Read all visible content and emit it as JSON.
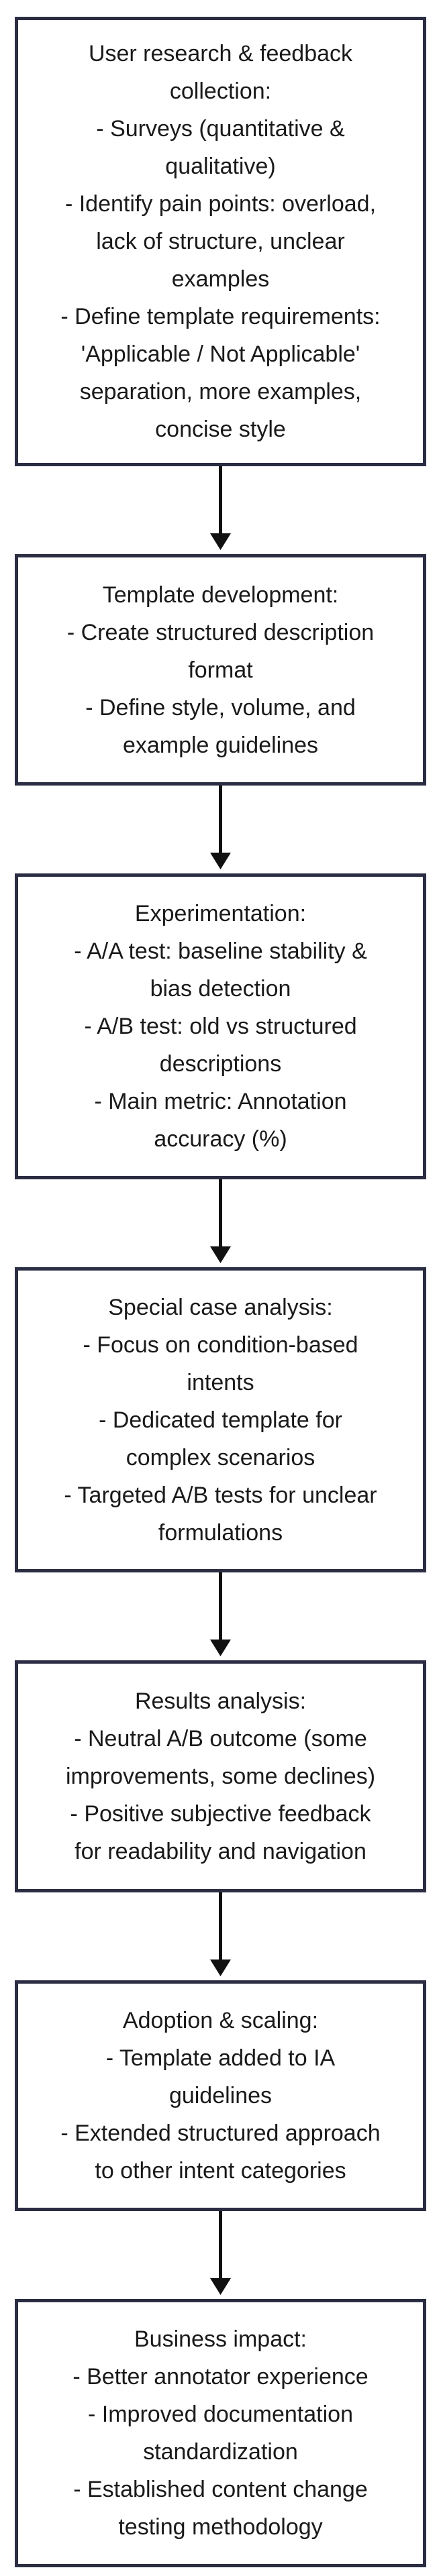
{
  "steps": [
    {
      "lines": [
        "User research & feedback",
        "collection:",
        "- Surveys (quantitative &",
        "qualitative)",
        "- Identify pain points: overload,",
        "lack of structure, unclear",
        "examples",
        "- Define template requirements:",
        "'Applicable / Not Applicable'",
        "separation, more examples,",
        "concise style"
      ]
    },
    {
      "lines": [
        "Template development:",
        "- Create structured description",
        "format",
        "- Define style, volume, and",
        "example guidelines"
      ]
    },
    {
      "lines": [
        "Experimentation:",
        "- A/A test: baseline stability &",
        "bias detection",
        "- A/B test: old vs structured",
        "descriptions",
        "- Main metric: Annotation",
        "accuracy (%)"
      ]
    },
    {
      "lines": [
        "Special case analysis:",
        "- Focus on condition-based",
        "intents",
        "- Dedicated template for",
        "complex scenarios",
        "- Targeted A/B tests for unclear",
        "formulations"
      ]
    },
    {
      "lines": [
        "Results analysis:",
        "- Neutral A/B outcome (some",
        "improvements, some declines)",
        "- Positive subjective feedback",
        "for readability and navigation"
      ]
    },
    {
      "lines": [
        "Adoption & scaling:",
        "- Template added to IA",
        "guidelines",
        "- Extended structured approach",
        "to other intent categories"
      ]
    },
    {
      "lines": [
        "Business impact:",
        "- Better annotator experience",
        "- Improved documentation",
        "standardization",
        "- Established content change",
        "testing methodology"
      ]
    }
  ]
}
